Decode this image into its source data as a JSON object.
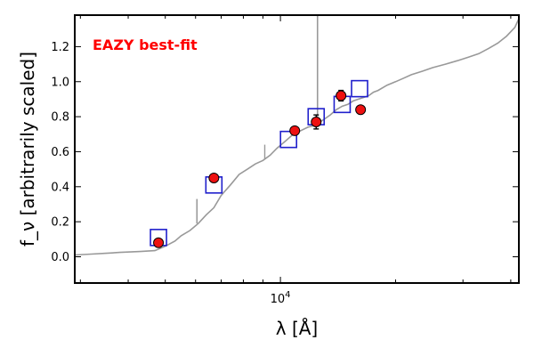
{
  "chart_data": {
    "type": "scatter",
    "title": "",
    "xlabel": "λ [Å]",
    "ylabel": "f_ν [arbitrarily scaled]",
    "xscale": "log",
    "xlim": [
      2900,
      42000
    ],
    "ylim": [
      -0.15,
      1.38
    ],
    "grid": false,
    "legend": "none",
    "x_ticks": [
      {
        "value": 10000,
        "label": "10^4"
      }
    ],
    "y_ticks": [
      {
        "value": 0.0,
        "label": "0.0"
      },
      {
        "value": 0.2,
        "label": "0.2"
      },
      {
        "value": 0.4,
        "label": "0.4"
      },
      {
        "value": 0.6,
        "label": "0.6"
      },
      {
        "value": 0.8,
        "label": "0.8"
      },
      {
        "value": 1.0,
        "label": "1.0"
      },
      {
        "value": 1.2,
        "label": "1.2"
      }
    ],
    "annotation": {
      "text": "EAZY best-fit",
      "color": "#ff0000"
    },
    "series": [
      {
        "kind": "template_spectrum",
        "color": "#999999",
        "x": [
          2900,
          3200,
          3500,
          3800,
          4300,
          4700,
          5000,
          5300,
          5500,
          5800,
          6100,
          6400,
          6700,
          7000,
          7400,
          7800,
          8200,
          8600,
          9000,
          9400,
          9800,
          10300,
          10800,
          11300,
          11800,
          12300,
          12700,
          13100,
          13500,
          14000,
          14500,
          15000,
          15500,
          16000,
          16500,
          17000,
          17500,
          18000,
          19000,
          20000,
          21000,
          22000,
          23500,
          25000,
          27000,
          29000,
          31000,
          33000,
          35000,
          37000,
          39000,
          41000,
          42000
        ],
        "y": [
          0.01,
          0.015,
          0.02,
          0.025,
          0.03,
          0.035,
          0.06,
          0.09,
          0.12,
          0.15,
          0.19,
          0.24,
          0.28,
          0.35,
          0.41,
          0.47,
          0.5,
          0.53,
          0.55,
          0.58,
          0.62,
          0.66,
          0.7,
          0.72,
          0.74,
          0.75,
          0.77,
          0.79,
          0.81,
          0.84,
          0.86,
          0.87,
          0.89,
          0.9,
          0.91,
          0.92,
          0.94,
          0.95,
          0.98,
          1.0,
          1.02,
          1.04,
          1.06,
          1.08,
          1.1,
          1.12,
          1.14,
          1.16,
          1.19,
          1.22,
          1.26,
          1.31,
          1.36
        ]
      },
      {
        "kind": "model_fluxes",
        "marker": "open-square",
        "color": "#1f1fcc",
        "x": [
          4800,
          6700,
          10500,
          12400,
          14500,
          16100
        ],
        "y": [
          0.11,
          0.41,
          0.67,
          0.8,
          0.87,
          0.96
        ]
      },
      {
        "kind": "observed_fluxes",
        "marker": "filled-circle",
        "color": "#ee1111",
        "x": [
          4800,
          6700,
          10900,
          12400,
          14400,
          16200
        ],
        "y": [
          0.08,
          0.45,
          0.72,
          0.77,
          0.92,
          0.84
        ],
        "yerr": [
          0.0,
          0.01,
          0.01,
          0.04,
          0.03,
          0.0
        ]
      }
    ]
  }
}
